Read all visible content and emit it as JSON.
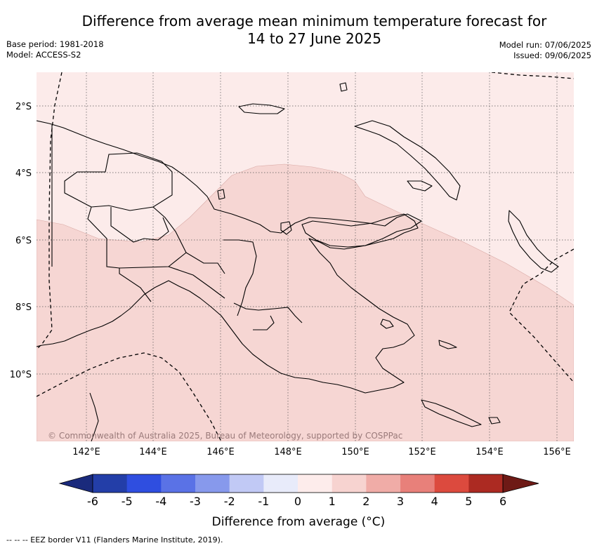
{
  "title_line1": "Difference from average mean minimum temperature forecast for",
  "title_line2": "14 to 27 June 2025",
  "base_period": "Base period: 1981-2018",
  "model": "Model: ACCESS-S2",
  "model_run": "Model run: 07/06/2025",
  "issued": "Issued: 09/06/2025",
  "lat_labels": [
    "2°S",
    "4°S",
    "6°S",
    "8°S",
    "10°S"
  ],
  "lon_labels": [
    "142°E",
    "144°E",
    "146°E",
    "148°E",
    "150°E",
    "152°E",
    "154°E",
    "156°E"
  ],
  "copyright": "© Commonwealth of Australia 2025, Bureau of Meteorology, supported by COSPPac",
  "colorbar": {
    "ticks": [
      "-6",
      "-5",
      "-4",
      "-3",
      "-2",
      "-1",
      "0",
      "1",
      "2",
      "3",
      "4",
      "5",
      "6"
    ],
    "label": "Difference from average (°C)",
    "colors": [
      "#233ea8",
      "#2f4ee0",
      "#5a72e6",
      "#8799ec",
      "#c1c9f5",
      "#e8ebfa",
      "#fdeceb",
      "#f7d3d0",
      "#f0aca7",
      "#e8807a",
      "#dc4a3e",
      "#ac2a22"
    ],
    "under_color": "#1a2a7c",
    "over_color": "#6e1a16"
  },
  "map_colors": {
    "range_0_1": "#fcebea",
    "range_1_2": "#f6d6d3"
  },
  "footnote": "-- -- -- EEZ border V11 (Flanders Marine Institute, 2019)."
}
